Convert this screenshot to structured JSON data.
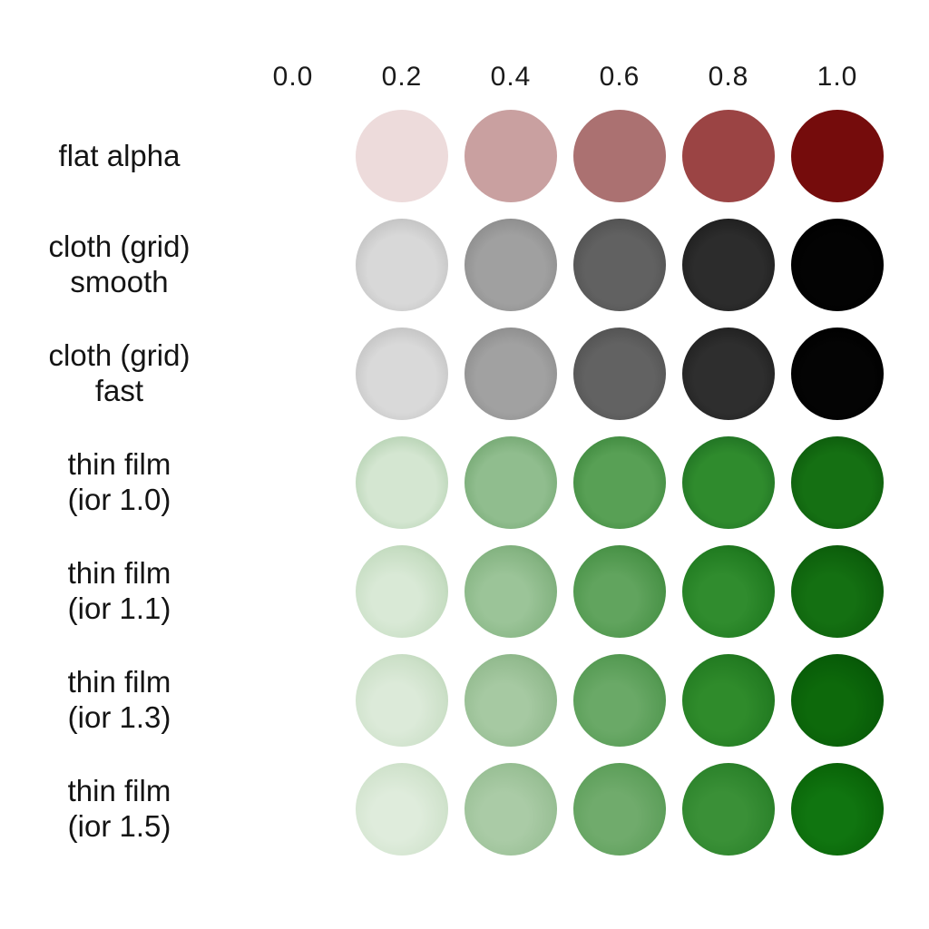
{
  "figure": {
    "background": "#ffffff",
    "text_color": "#141414"
  },
  "chart_data": {
    "type": "table",
    "title": "",
    "description": "Matrix of rendered spheres comparing shading techniques (rows) across coverage/alpha values (columns); empty cell at 0.0",
    "columns": [
      "0.0",
      "0.2",
      "0.4",
      "0.6",
      "0.8",
      "1.0"
    ],
    "rows": [
      {
        "label_lines": [
          "flat alpha"
        ],
        "shading": "flat",
        "cells": [
          null,
          {
            "center": "#eddbdb",
            "mid": "#eddbdb",
            "edge": "#eddbdb"
          },
          {
            "center": "#c9a0a0",
            "mid": "#c9a0a0",
            "edge": "#c9a0a0"
          },
          {
            "center": "#ab7171",
            "mid": "#ab7171",
            "edge": "#ab7171"
          },
          {
            "center": "#9b4444",
            "mid": "#9b4444",
            "edge": "#9b4444"
          },
          {
            "center": "#750c0c",
            "mid": "#750c0c",
            "edge": "#750c0c"
          }
        ]
      },
      {
        "label_lines": [
          "cloth (grid)",
          "smooth"
        ],
        "shading": "rim",
        "cells": [
          null,
          {
            "center": "#d8d8d8",
            "mid": "#c3c3c3",
            "edge": "#5a5a5a"
          },
          {
            "center": "#a0a0a0",
            "mid": "#8d8d8d",
            "edge": "#2d2d2d"
          },
          {
            "center": "#616161",
            "mid": "#525252",
            "edge": "#111111"
          },
          {
            "center": "#2c2c2c",
            "mid": "#1f1f1f",
            "edge": "#000000"
          },
          {
            "center": "#030303",
            "mid": "#000000",
            "edge": "#000000"
          }
        ]
      },
      {
        "label_lines": [
          "cloth (grid)",
          "fast"
        ],
        "shading": "rim",
        "cells": [
          null,
          {
            "center": "#d9d9d9",
            "mid": "#c4c4c4",
            "edge": "#5a5a5a"
          },
          {
            "center": "#a1a1a1",
            "mid": "#8e8e8e",
            "edge": "#2d2d2d"
          },
          {
            "center": "#626262",
            "mid": "#535353",
            "edge": "#111111"
          },
          {
            "center": "#2e2e2e",
            "mid": "#212121",
            "edge": "#000000"
          },
          {
            "center": "#040404",
            "mid": "#000000",
            "edge": "#000000"
          }
        ]
      },
      {
        "label_lines": [
          "thin film",
          "(ior 1.0)"
        ],
        "shading": "rim",
        "cells": [
          null,
          {
            "center": "#d4e6d1",
            "mid": "#b9d4b6",
            "edge": "#6b8868"
          },
          {
            "center": "#90bd8e",
            "mid": "#77aa75",
            "edge": "#355934"
          },
          {
            "center": "#58a055",
            "mid": "#428c41",
            "edge": "#1d431c"
          },
          {
            "center": "#2f8b2d",
            "mid": "#217424",
            "edge": "#0a2b09"
          },
          {
            "center": "#157013",
            "mid": "#0e5d0d",
            "edge": "#010401"
          }
        ]
      },
      {
        "label_lines": [
          "thin film",
          "(ior 1.1)"
        ],
        "shading": "soft",
        "cells": [
          null,
          {
            "center": "#d9e9d6",
            "mid": "#c6ddc2",
            "edge": "#a2c19e"
          },
          {
            "center": "#9bc498",
            "mid": "#85b482",
            "edge": "#619560"
          },
          {
            "center": "#61a45e",
            "mid": "#4b9449",
            "edge": "#2b722a"
          },
          {
            "center": "#308c2e",
            "mid": "#217c21",
            "edge": "#0f520f"
          },
          {
            "center": "#147012",
            "mid": "#0d600c",
            "edge": "#053f05"
          }
        ]
      },
      {
        "label_lines": [
          "thin film",
          "(ior 1.3)"
        ],
        "shading": "soft",
        "cells": [
          null,
          {
            "center": "#dcead9",
            "mid": "#cce0c8",
            "edge": "#aecbaa"
          },
          {
            "center": "#a6c9a2",
            "mid": "#93bb8f",
            "edge": "#74a371"
          },
          {
            "center": "#6aa967",
            "mid": "#569b54",
            "edge": "#377f36"
          },
          {
            "center": "#2f8b2b",
            "mid": "#237c22",
            "edge": "#125c12"
          },
          {
            "center": "#0d690b",
            "mid": "#085c08",
            "edge": "#044304"
          }
        ]
      },
      {
        "label_lines": [
          "thin film",
          "(ior 1.5)"
        ],
        "shading": "soft",
        "cells": [
          null,
          {
            "center": "#dfecdc",
            "mid": "#d1e3cd",
            "edge": "#b9d3b5"
          },
          {
            "center": "#aacba6",
            "mid": "#9ac096",
            "edge": "#7fae7c"
          },
          {
            "center": "#70ab6c",
            "mid": "#5fa05c",
            "edge": "#428c40"
          },
          {
            "center": "#3a9037",
            "mid": "#2d842c",
            "edge": "#1a661a"
          },
          {
            "center": "#107510",
            "mid": "#0a6609",
            "edge": "#054c05"
          }
        ]
      }
    ],
    "layout": {
      "legend": "none",
      "grid": "off",
      "header_position": "top",
      "row_label_position": "left"
    }
  }
}
